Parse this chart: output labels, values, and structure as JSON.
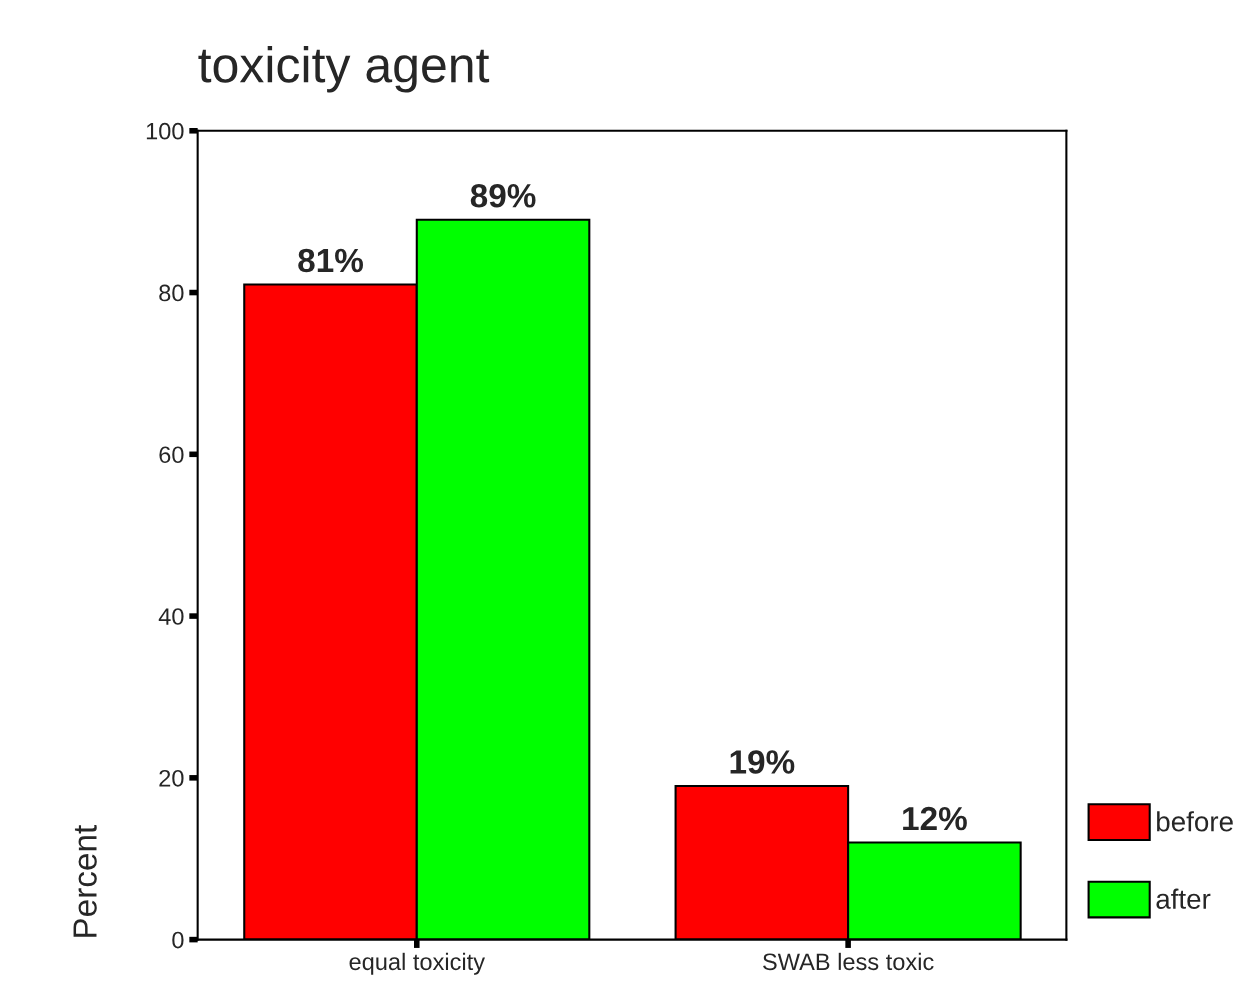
{
  "chart_data": {
    "type": "bar",
    "title": "toxicity agent",
    "ylabel": "Percent",
    "categories": [
      "equal toxicity",
      "SWAB less toxic"
    ],
    "series": [
      {
        "name": "before",
        "color": "#ff0000",
        "values": [
          81,
          19
        ],
        "value_labels": [
          "81%",
          "19%"
        ]
      },
      {
        "name": "after",
        "color": "#00ff00",
        "values": [
          89,
          12
        ],
        "value_labels": [
          "89%",
          "12%"
        ]
      }
    ],
    "ylim": [
      0,
      100
    ],
    "yticks": [
      0,
      20,
      40,
      60,
      80,
      100
    ],
    "grid": false,
    "legend": "bottom right"
  }
}
